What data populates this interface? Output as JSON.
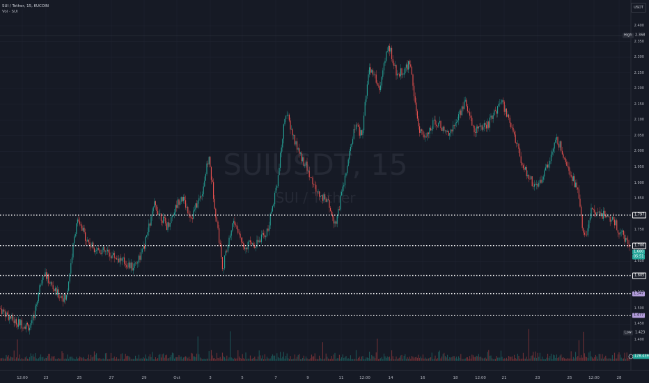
{
  "legend": {
    "symbol_line": "SUI / Tether, 15, KUCOIN",
    "volume_line": "Vol · SUI"
  },
  "watermark": {
    "ticker": "SUIUSDT, 15",
    "pair": "SUI / Tether"
  },
  "currency": "USDT",
  "y_axis_ticks": [
    "2.400",
    "2.350",
    "2.300",
    "2.250",
    "2.200",
    "2.150",
    "2.100",
    "2.050",
    "2.000",
    "1.950",
    "1.900",
    "1.850",
    "1.800",
    "1.750",
    "1.700",
    "1.650",
    "1.600",
    "1.550",
    "1.500",
    "1.450",
    "1.400"
  ],
  "x_axis_ticks": [
    "12:00",
    "23",
    "25",
    "27",
    "29",
    "Oct",
    "3",
    "5",
    "7",
    "9",
    "11",
    "12:00",
    "14",
    "16",
    "18",
    "12:00",
    "21",
    "23",
    "25",
    "12:00",
    "28"
  ],
  "high": {
    "label": "High",
    "value": "2.368"
  },
  "low": {
    "label": "Low",
    "value": "1.423"
  },
  "price_lines": [
    {
      "value": "1.797"
    },
    {
      "value": "1.700"
    },
    {
      "value": "1.605"
    },
    {
      "value": "1.547"
    },
    {
      "value": "1.477"
    }
  ],
  "last_price": {
    "value": "1.680",
    "countdown": "05:51"
  },
  "volume_label": "178.439K",
  "colors": {
    "background": "#161a25",
    "up": "#26a69a",
    "down": "#ef5350",
    "level_line": "#ffffff",
    "purple_label": "#b39ddb",
    "level_label_bg": "#1e222d"
  },
  "chart_data": {
    "type": "candlestick",
    "y_range": [
      1.4,
      2.4
    ],
    "price_path": [
      [
        0,
        1.5
      ],
      [
        20,
        1.46
      ],
      [
        45,
        1.44
      ],
      [
        62,
        1.62
      ],
      [
        80,
        1.55
      ],
      [
        95,
        1.53
      ],
      [
        110,
        1.78
      ],
      [
        130,
        1.7
      ],
      [
        150,
        1.68
      ],
      [
        170,
        1.66
      ],
      [
        190,
        1.63
      ],
      [
        205,
        1.68
      ],
      [
        222,
        1.83
      ],
      [
        240,
        1.76
      ],
      [
        260,
        1.86
      ],
      [
        275,
        1.79
      ],
      [
        290,
        1.87
      ],
      [
        300,
        1.98
      ],
      [
        310,
        1.8
      ],
      [
        320,
        1.63
      ],
      [
        335,
        1.78
      ],
      [
        350,
        1.7
      ],
      [
        370,
        1.71
      ],
      [
        385,
        1.75
      ],
      [
        400,
        1.93
      ],
      [
        410,
        2.13
      ],
      [
        425,
        2.02
      ],
      [
        440,
        1.95
      ],
      [
        455,
        1.87
      ],
      [
        470,
        1.84
      ],
      [
        482,
        1.77
      ],
      [
        495,
        1.91
      ],
      [
        510,
        2.08
      ],
      [
        520,
        2.05
      ],
      [
        530,
        2.27
      ],
      [
        545,
        2.2
      ],
      [
        558,
        2.34
      ],
      [
        570,
        2.24
      ],
      [
        590,
        2.28
      ],
      [
        600,
        2.08
      ],
      [
        612,
        2.04
      ],
      [
        625,
        2.1
      ],
      [
        640,
        2.06
      ],
      [
        650,
        2.07
      ],
      [
        668,
        2.16
      ],
      [
        680,
        2.07
      ],
      [
        700,
        2.08
      ],
      [
        720,
        2.16
      ],
      [
        735,
        2.08
      ],
      [
        750,
        1.96
      ],
      [
        770,
        1.88
      ],
      [
        785,
        1.95
      ],
      [
        800,
        2.04
      ],
      [
        815,
        1.96
      ],
      [
        830,
        1.87
      ],
      [
        840,
        1.71
      ],
      [
        850,
        1.82
      ],
      [
        865,
        1.8
      ],
      [
        880,
        1.78
      ],
      [
        895,
        1.73
      ],
      [
        906,
        1.68
      ]
    ]
  }
}
